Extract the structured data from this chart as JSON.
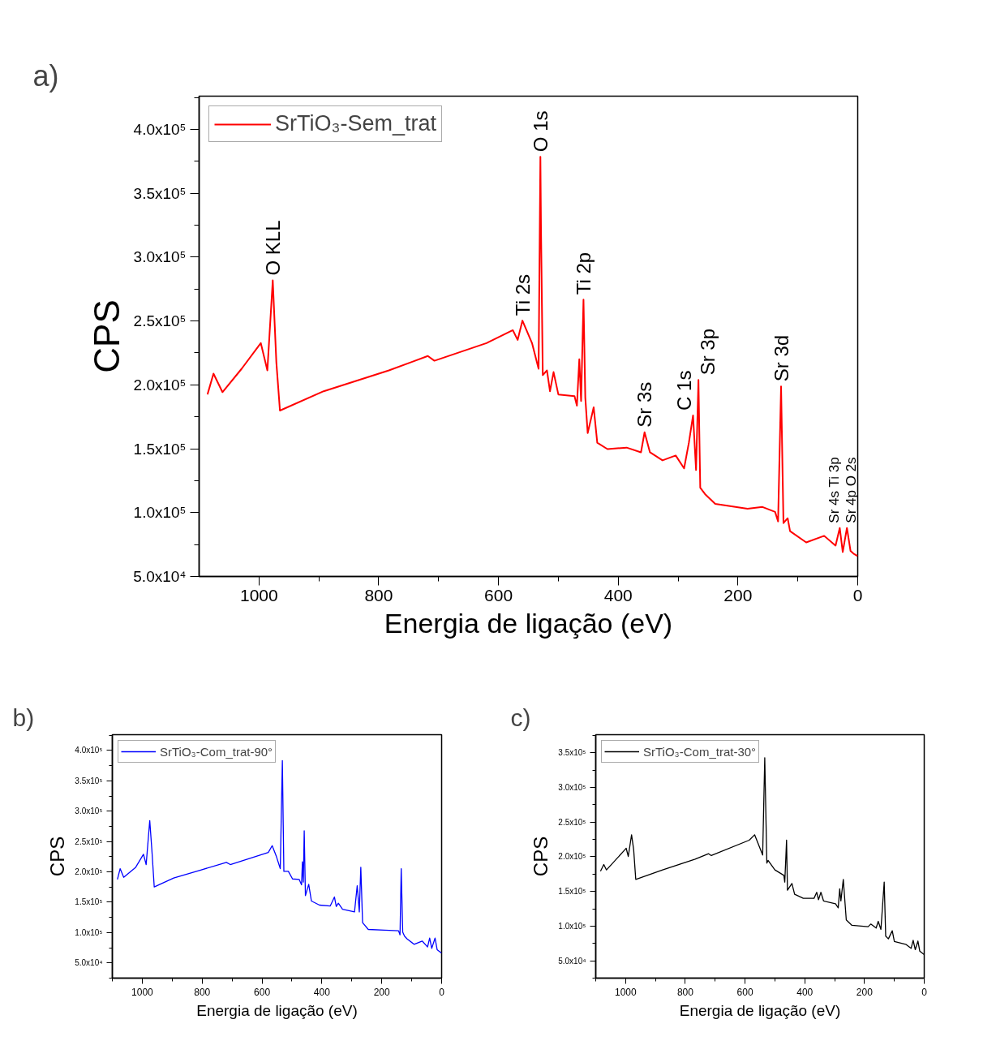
{
  "chart_data": [
    {
      "type": "line",
      "title": "a)",
      "xlabel": "Energia de ligação (eV)",
      "ylabel": "CPS",
      "legend": "top left",
      "xlim": [
        1100,
        0
      ],
      "ylim": [
        50000,
        426000
      ],
      "xticks": [
        1000,
        {
          "value": 900,
          "label": null
        },
        800,
        {
          "value": 700,
          "label": null
        },
        600,
        {
          "value": 500,
          "label": null
        },
        400,
        {
          "value": 300,
          "label": null
        },
        200,
        {
          "value": 100,
          "label": null
        },
        0
      ],
      "yticks": [
        {
          "value": 50000,
          "label": "5.0x10⁴"
        },
        {
          "value": 75000,
          "label": null
        },
        {
          "value": 100000,
          "label": "1.0x10⁵"
        },
        {
          "value": 125000,
          "label": null
        },
        {
          "value": 150000,
          "label": "1.5x10⁵"
        },
        {
          "value": 175000,
          "label": null
        },
        {
          "value": 200000,
          "label": "2.0x10⁵"
        },
        {
          "value": 225000,
          "label": null
        },
        {
          "value": 250000,
          "label": "2.5x10⁵"
        },
        {
          "value": 275000,
          "label": null
        },
        {
          "value": 300000,
          "label": "3.0x10⁵"
        },
        {
          "value": 325000,
          "label": null
        },
        {
          "value": 350000,
          "label": "3.5x10⁵"
        },
        {
          "value": 375000,
          "label": null
        },
        {
          "value": 400000,
          "label": "4.0x10⁵"
        },
        {
          "value": 425000,
          "label": null
        }
      ],
      "series": [
        {
          "name": "SrTiO₃-Sem_trat",
          "color": "#ff0000",
          "x": [
            1086,
            1076,
            1061,
            1029,
            997,
            986,
            977,
            971,
            965,
            892,
            783,
            718,
            707,
            620,
            576,
            568,
            560,
            544,
            533,
            530,
            529,
            526,
            519,
            514,
            508,
            500,
            473,
            469,
            465,
            462,
            458,
            455,
            451,
            441,
            435,
            418,
            386,
            362,
            356,
            347,
            326,
            304,
            290,
            282,
            275,
            270,
            266,
            263,
            255,
            238,
            184,
            159,
            138,
            133,
            128,
            124,
            117,
            113,
            86,
            56,
            37,
            30,
            25,
            18,
            12,
            7,
            0
          ],
          "values": [
            192500,
            208800,
            194300,
            212600,
            232700,
            211300,
            281800,
            217600,
            179900,
            195000,
            211300,
            222600,
            218900,
            232700,
            242800,
            235200,
            250300,
            232700,
            212600,
            378600,
            323300,
            207600,
            211300,
            195000,
            210000,
            192500,
            191200,
            183700,
            220100,
            187400,
            266700,
            190000,
            162300,
            182400,
            154700,
            149700,
            150900,
            147200,
            162900,
            147200,
            140900,
            144700,
            134600,
            154700,
            176100,
            133300,
            203800,
            119500,
            114500,
            106900,
            103100,
            104400,
            100600,
            93100,
            198800,
            91800,
            95600,
            85500,
            76700,
            81800,
            74200,
            88000,
            69200,
            88000,
            70000,
            67900,
            66000
          ]
        }
      ],
      "annotations": [
        {
          "text": "O KLL",
          "x": 977,
          "y": 281800
        },
        {
          "text": "Ti 2s",
          "x": 560,
          "y": 250300
        },
        {
          "text": "O 1s",
          "x": 530,
          "y": 378600
        },
        {
          "text": "Ti 2p",
          "x": 458,
          "y": 266700
        },
        {
          "text": "Sr 3s",
          "x": 356,
          "y": 162900
        },
        {
          "text": "C 1s",
          "x": 275,
          "y": 176100
        },
        {
          "text": "Sr 3p",
          "x": 266,
          "y": 203800
        },
        {
          "text": "Sr 3d",
          "x": 128,
          "y": 198800
        },
        {
          "text": "Sr 4s  Ti 3p",
          "x": 30,
          "y": 88000
        },
        {
          "text": "Sr 4p  O 2s",
          "x": 12,
          "y": 88000
        }
      ]
    },
    {
      "type": "line",
      "title": "b)",
      "xlabel": "Energia de ligação (eV)",
      "ylabel": "CPS",
      "legend": "top left",
      "xlim": [
        1100,
        0
      ],
      "ylim": [
        25000,
        426000
      ],
      "xticks": [
        {
          "value": 1100,
          "label": null
        },
        1000,
        {
          "value": 900,
          "label": null
        },
        800,
        {
          "value": 700,
          "label": null
        },
        600,
        {
          "value": 500,
          "label": null
        },
        400,
        {
          "value": 300,
          "label": null
        },
        200,
        {
          "value": 100,
          "label": null
        },
        0
      ],
      "yticks": [
        {
          "value": 25000,
          "label": null
        },
        {
          "value": 50000,
          "label": "5.0x10⁴"
        },
        {
          "value": 75000,
          "label": null
        },
        {
          "value": 100000,
          "label": "1.0x10⁵"
        },
        {
          "value": 125000,
          "label": null
        },
        {
          "value": 150000,
          "label": "1.5x10⁵"
        },
        {
          "value": 175000,
          "label": null
        },
        {
          "value": 200000,
          "label": "2.0x10⁵"
        },
        {
          "value": 225000,
          "label": null
        },
        {
          "value": 250000,
          "label": "2.5x10⁵"
        },
        {
          "value": 275000,
          "label": null
        },
        {
          "value": 300000,
          "label": "3.0x10⁵"
        },
        {
          "value": 325000,
          "label": null
        },
        {
          "value": 350000,
          "label": "3.5x10⁵"
        },
        {
          "value": 375000,
          "label": null
        },
        {
          "value": 400000,
          "label": "4.0x10⁵"
        },
        {
          "value": 425000,
          "label": null
        }
      ],
      "series": [
        {
          "name": "SrTiO₃-Com_trat-90°",
          "color": "#0000ff",
          "x": [
            1083,
            1074,
            1062,
            1022,
            996,
            987,
            975,
            968,
            960,
            895,
            805,
            719,
            706,
            579,
            566,
            552,
            539,
            532,
            527,
            512,
            498,
            476,
            468,
            465,
            462,
            459,
            455,
            444,
            435,
            408,
            372,
            358,
            352,
            345,
            331,
            291,
            282,
            275,
            270,
            264,
            245,
            191,
            144,
            139,
            135,
            130,
            124,
            115,
            92,
            65,
            47,
            40,
            33,
            22,
            15,
            0
          ],
          "values": [
            187600,
            205400,
            191100,
            207600,
            229000,
            212100,
            284600,
            236500,
            175100,
            189800,
            203100,
            215600,
            212100,
            232100,
            243200,
            225400,
            205400,
            383500,
            200900,
            200900,
            188400,
            187600,
            178700,
            216500,
            183100,
            267700,
            160900,
            179600,
            152000,
            145300,
            143900,
            158600,
            143000,
            148400,
            138600,
            134100,
            177300,
            134100,
            207600,
            116300,
            105200,
            103900,
            103000,
            96300,
            205400,
            100800,
            94100,
            89600,
            80700,
            86100,
            76300,
            91000,
            74000,
            91000,
            71800,
            66000
          ]
        }
      ]
    },
    {
      "type": "line",
      "title": "c)",
      "xlabel": "Energia de ligação (eV)",
      "ylabel": "CPS",
      "legend": "top left",
      "xlim": [
        1100,
        0
      ],
      "ylim": [
        25000,
        376000
      ],
      "xticks": [
        {
          "value": 1100,
          "label": null
        },
        1000,
        {
          "value": 900,
          "label": null
        },
        800,
        {
          "value": 700,
          "label": null
        },
        600,
        {
          "value": 500,
          "label": null
        },
        400,
        {
          "value": 300,
          "label": null
        },
        200,
        {
          "value": 100,
          "label": null
        },
        0
      ],
      "yticks": [
        {
          "value": 25000,
          "label": null
        },
        {
          "value": 50000,
          "label": "5.0x10⁴"
        },
        {
          "value": 75000,
          "label": null
        },
        {
          "value": 100000,
          "label": "1.0x10⁵"
        },
        {
          "value": 125000,
          "label": null
        },
        {
          "value": 150000,
          "label": "1.5x10⁵"
        },
        {
          "value": 175000,
          "label": null
        },
        {
          "value": 200000,
          "label": "2.0x10⁵"
        },
        {
          "value": 225000,
          "label": null
        },
        {
          "value": 250000,
          "label": "2.5x10⁵"
        },
        {
          "value": 275000,
          "label": null
        },
        {
          "value": 300000,
          "label": "3.0x10⁵"
        },
        {
          "value": 325000,
          "label": null
        },
        {
          "value": 350000,
          "label": "3.5x10⁵"
        },
        {
          "value": 375000,
          "label": null
        }
      ],
      "series": [
        {
          "name": "SrTiO₃-Com_trat-30°",
          "color": "#000000",
          "x": [
            1084,
            1073,
            1064,
            1002,
            998,
            991,
            980,
            973,
            966,
            876,
            767,
            722,
            713,
            586,
            568,
            541,
            534,
            527,
            523,
            500,
            470,
            467,
            464,
            461,
            458,
            443,
            434,
            405,
            369,
            360,
            354,
            346,
            337,
            297,
            288,
            283,
            279,
            271,
            261,
            242,
            188,
            179,
            161,
            154,
            145,
            134,
            129,
            120,
            107,
            100,
            62,
            44,
            37,
            30,
            21,
            15,
            0
          ],
          "values": [
            179100,
            188800,
            181000,
            210300,
            212200,
            200500,
            231700,
            210300,
            167400,
            181000,
            196600,
            204400,
            201700,
            223900,
            231700,
            202500,
            342900,
            190800,
            194700,
            181000,
            173200,
            163500,
            192700,
            223900,
            151800,
            161500,
            145900,
            140100,
            140100,
            148700,
            138100,
            148700,
            136200,
            132300,
            126400,
            153700,
            136200,
            167400,
            108900,
            101100,
            99100,
            103000,
            97200,
            106900,
            95200,
            163500,
            85500,
            81600,
            93300,
            77700,
            73800,
            67900,
            79600,
            66000,
            78500,
            64000,
            59000
          ]
        }
      ]
    }
  ]
}
